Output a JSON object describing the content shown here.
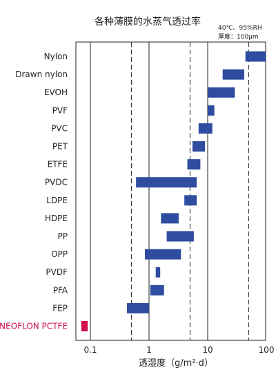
{
  "chart_data": {
    "type": "bar",
    "orientation": "horizontal",
    "title": "各种薄膜的水蒸气透过率",
    "conditions": [
      "40℃、95%RH",
      "厚度：100μm"
    ],
    "xlabel": "透湿度（g/m²·d）",
    "xscale": "log",
    "xlim": [
      0.05,
      100
    ],
    "xticks": [
      "0.1",
      "1",
      "10",
      "100"
    ],
    "grid": "vertical",
    "colors": {
      "bar": "#2e4da0",
      "highlight": "#d0104c"
    },
    "categories": [
      "Nylon",
      "Drawn nylon",
      "EVOH",
      "PVF",
      "PVC",
      "PET",
      "ETFE",
      "PVDC",
      "LDPE",
      "HDPE",
      "PP",
      "OPP",
      "PVDF",
      "PFA",
      "FEP",
      "NEOFLON PCTFE"
    ],
    "highlight": "NEOFLON PCTFE",
    "ranges": [
      [
        44,
        100
      ],
      [
        18,
        42
      ],
      [
        10,
        29
      ],
      [
        10,
        13
      ],
      [
        7,
        12
      ],
      [
        5.5,
        9
      ],
      [
        4.5,
        7.5
      ],
      [
        0.6,
        6.5
      ],
      [
        4,
        6.5
      ],
      [
        1.6,
        3.2
      ],
      [
        2,
        5.8
      ],
      [
        0.85,
        3.5
      ],
      [
        1.3,
        1.55
      ],
      [
        1.05,
        1.8
      ],
      [
        0.42,
        1.0
      ],
      [
        0.07,
        0.09
      ]
    ]
  }
}
